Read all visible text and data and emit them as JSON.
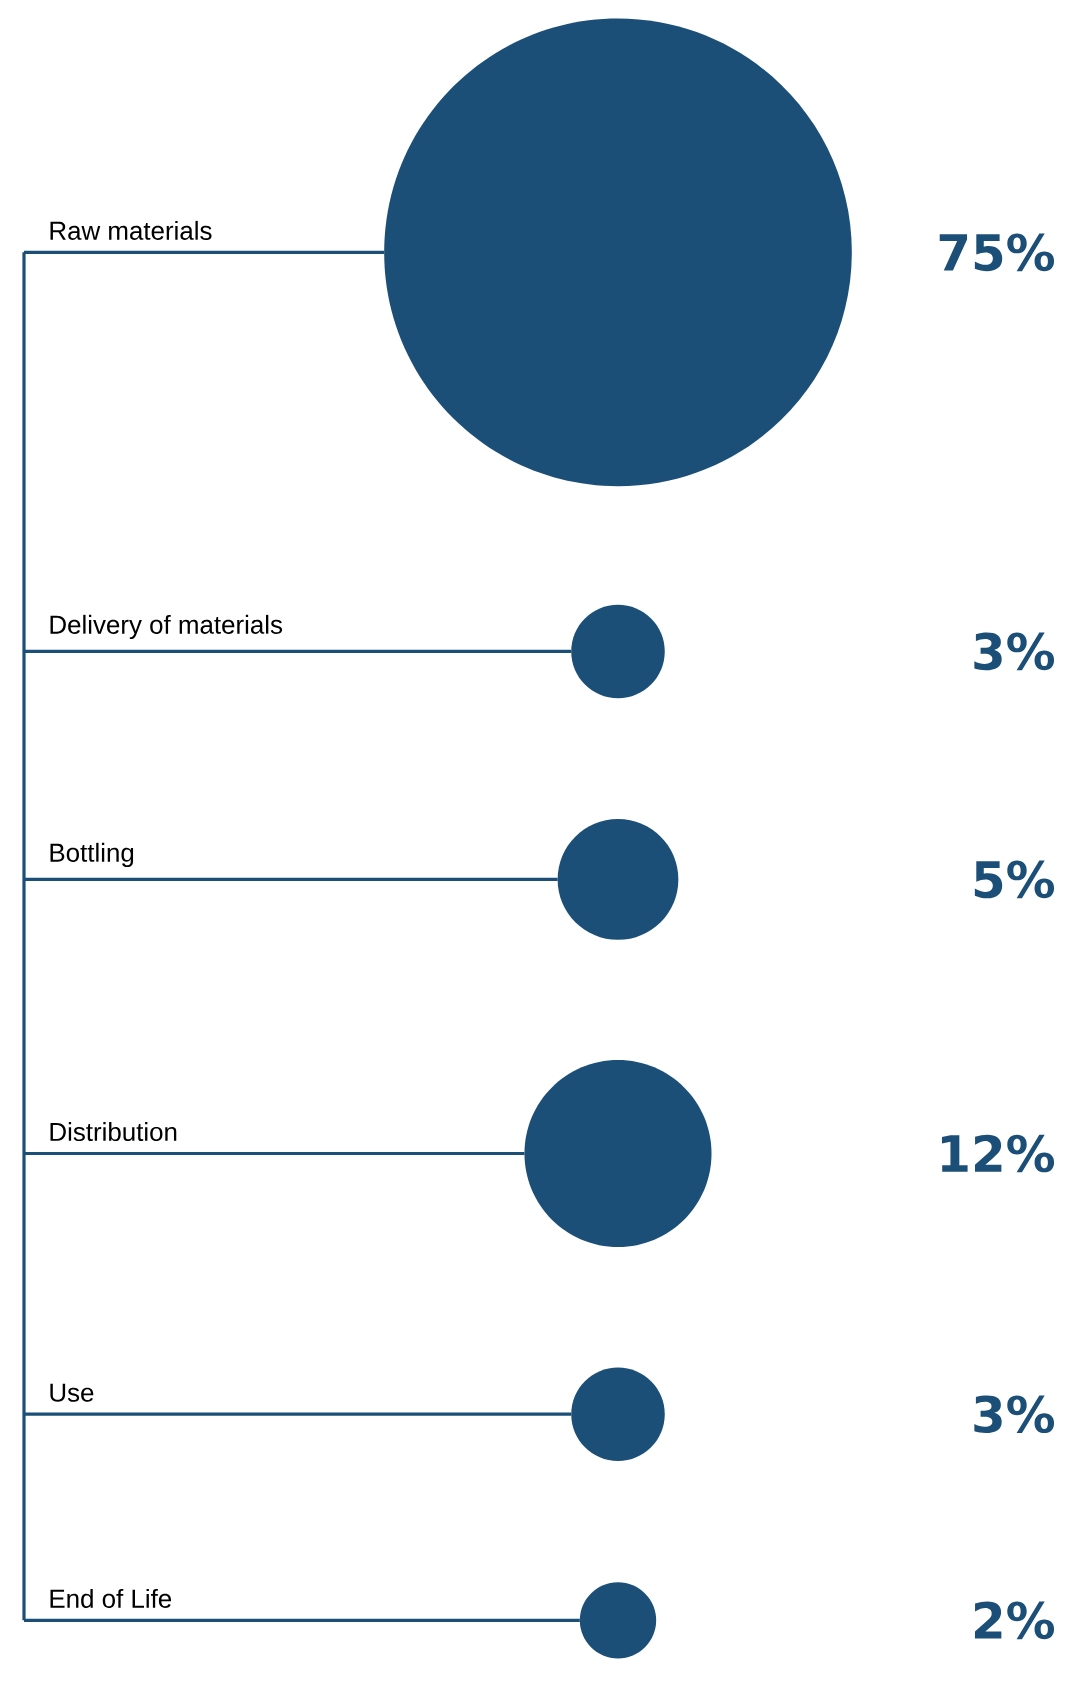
{
  "chart_data": {
    "type": "other",
    "categories": [
      "Raw materials",
      "Delivery of materials",
      "Bottling",
      "Distribution",
      "Use",
      "End of Life"
    ],
    "values": [
      75,
      3,
      5,
      12,
      3,
      2
    ],
    "value_labels": [
      "75%",
      "3%",
      "5%",
      "12%",
      "3%",
      "2%"
    ],
    "color": "#1b4f78"
  }
}
